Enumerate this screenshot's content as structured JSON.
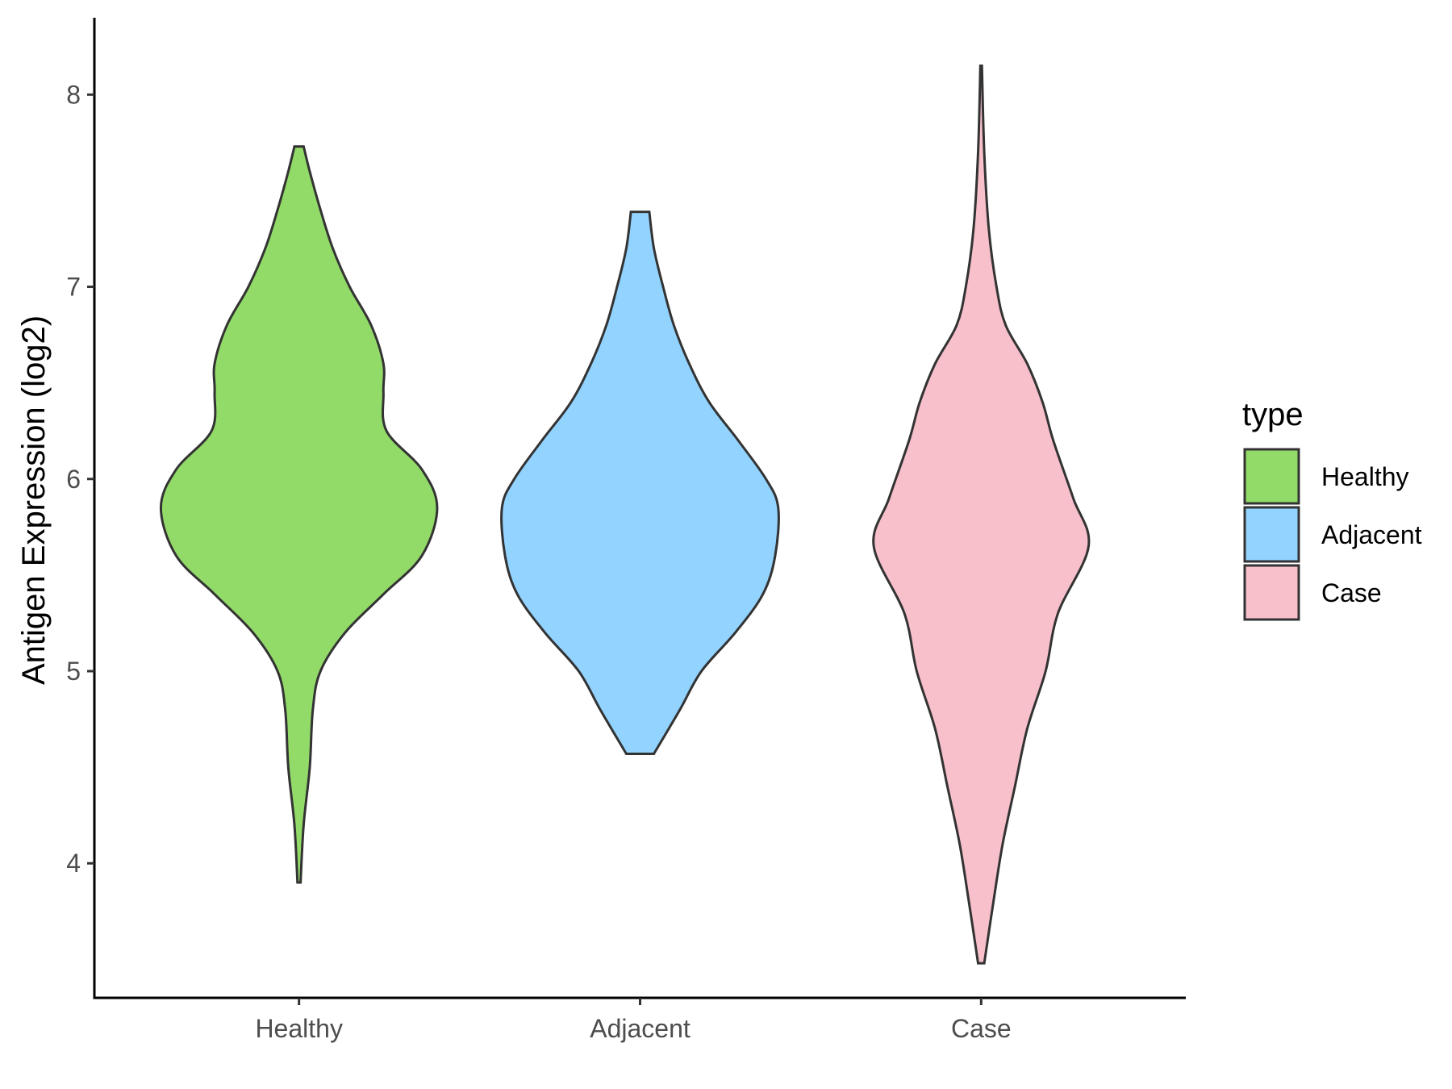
{
  "chart_data": {
    "type": "violin",
    "title": "",
    "xlabel": "",
    "ylabel": "Antigen Expression (log2)",
    "ylim": [
      3.3,
      8.4
    ],
    "yticks": [
      4,
      5,
      6,
      7,
      8
    ],
    "categories": [
      "Healthy",
      "Adjacent",
      "Case"
    ],
    "grid": false,
    "legend": {
      "title": "type",
      "position": "right",
      "entries": [
        "Healthy",
        "Adjacent",
        "Case"
      ]
    },
    "series": [
      {
        "name": "Healthy",
        "color": "#93DB69",
        "min": 3.9,
        "max": 7.73,
        "density": [
          [
            3.9,
            0.01
          ],
          [
            4.2,
            0.03
          ],
          [
            4.5,
            0.07
          ],
          [
            4.8,
            0.09
          ],
          [
            5.0,
            0.14
          ],
          [
            5.2,
            0.3
          ],
          [
            5.4,
            0.55
          ],
          [
            5.6,
            0.8
          ],
          [
            5.85,
            0.9
          ],
          [
            6.05,
            0.8
          ],
          [
            6.25,
            0.57
          ],
          [
            6.45,
            0.55
          ],
          [
            6.6,
            0.55
          ],
          [
            6.8,
            0.47
          ],
          [
            7.0,
            0.33
          ],
          [
            7.2,
            0.22
          ],
          [
            7.4,
            0.14
          ],
          [
            7.6,
            0.07
          ],
          [
            7.73,
            0.03
          ]
        ]
      },
      {
        "name": "Adjacent",
        "color": "#93D3FF",
        "min": 4.57,
        "max": 7.39,
        "density": [
          [
            4.57,
            0.09
          ],
          [
            4.8,
            0.26
          ],
          [
            5.0,
            0.4
          ],
          [
            5.2,
            0.62
          ],
          [
            5.4,
            0.8
          ],
          [
            5.6,
            0.88
          ],
          [
            5.85,
            0.9
          ],
          [
            6.0,
            0.82
          ],
          [
            6.2,
            0.64
          ],
          [
            6.4,
            0.45
          ],
          [
            6.6,
            0.32
          ],
          [
            6.8,
            0.22
          ],
          [
            7.0,
            0.15
          ],
          [
            7.2,
            0.09
          ],
          [
            7.39,
            0.06
          ]
        ]
      },
      {
        "name": "Case",
        "color": "#F7C0CB",
        "min": 3.48,
        "max": 8.15,
        "density": [
          [
            3.48,
            0.02
          ],
          [
            3.8,
            0.08
          ],
          [
            4.1,
            0.14
          ],
          [
            4.4,
            0.22
          ],
          [
            4.7,
            0.3
          ],
          [
            5.0,
            0.42
          ],
          [
            5.3,
            0.5
          ],
          [
            5.65,
            0.7
          ],
          [
            5.9,
            0.6
          ],
          [
            6.2,
            0.47
          ],
          [
            6.4,
            0.4
          ],
          [
            6.6,
            0.3
          ],
          [
            6.8,
            0.16
          ],
          [
            7.0,
            0.1
          ],
          [
            7.3,
            0.05
          ],
          [
            7.7,
            0.02
          ],
          [
            8.15,
            0.005
          ]
        ]
      }
    ]
  }
}
